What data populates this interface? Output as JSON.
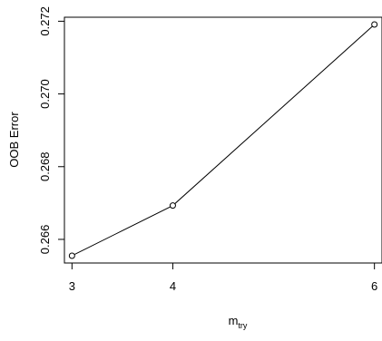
{
  "chart_data": {
    "type": "line",
    "x": [
      3,
      4,
      6
    ],
    "series": [
      {
        "values": [
          0.26555,
          0.26693,
          0.27191
        ]
      }
    ],
    "xlabel_main": "m",
    "xlabel_sub": "try",
    "ylabel": "OOB Error",
    "x_ticks": [
      3,
      4,
      6
    ],
    "x_tick_labels": [
      "3",
      "4",
      "6"
    ],
    "y_ticks": [
      0.266,
      0.268,
      0.27,
      0.272
    ],
    "y_tick_labels": [
      "0.266",
      "0.268",
      "0.270",
      "0.272"
    ],
    "xlim": [
      2.925,
      6.075
    ],
    "ylim": [
      0.26535,
      0.27211
    ],
    "grid": false,
    "marker": "open-circle",
    "line_color": "#000000"
  }
}
